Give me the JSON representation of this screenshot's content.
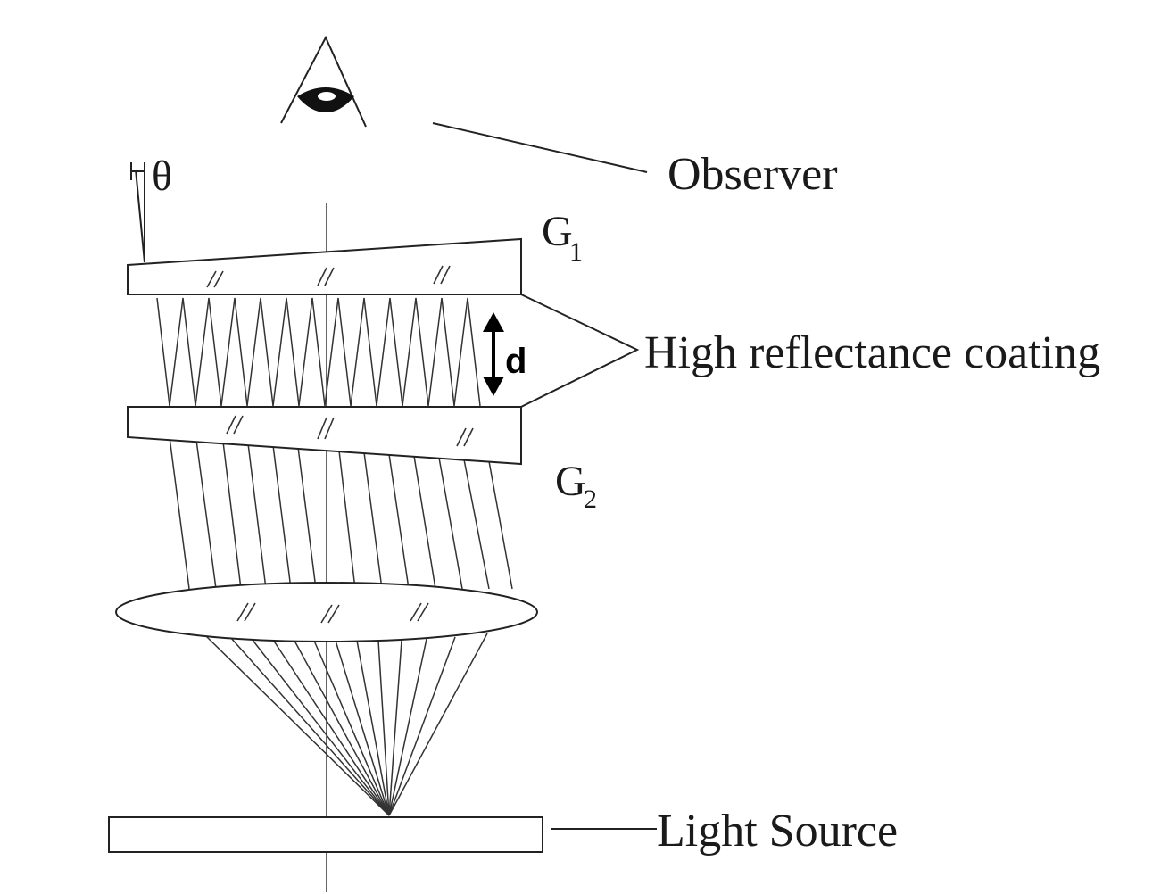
{
  "labels": {
    "observer": "Observer",
    "theta": "θ",
    "g1_letter": "G",
    "g1_sub": "1",
    "g2_letter": "G",
    "g2_sub": "2",
    "coating": "High reflectance coating",
    "d": "d",
    "light_source": "Light Source"
  },
  "colors": {
    "stroke": "#222222",
    "background": "#ffffff"
  }
}
